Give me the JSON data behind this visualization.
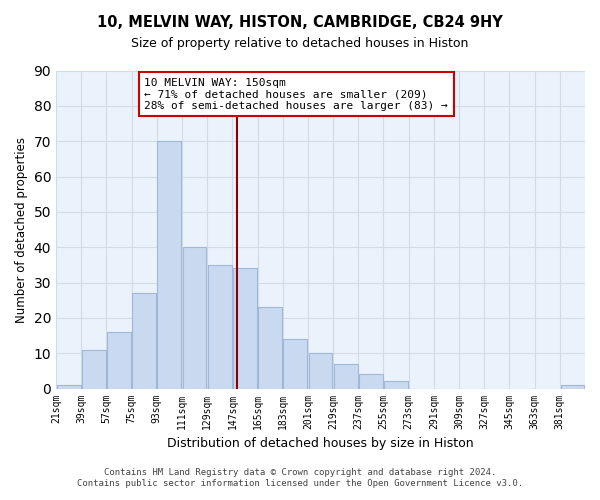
{
  "title": "10, MELVIN WAY, HISTON, CAMBRIDGE, CB24 9HY",
  "subtitle": "Size of property relative to detached houses in Histon",
  "xlabel": "Distribution of detached houses by size in Histon",
  "ylabel": "Number of detached properties",
  "bin_labels": [
    "21sqm",
    "39sqm",
    "57sqm",
    "75sqm",
    "93sqm",
    "111sqm",
    "129sqm",
    "147sqm",
    "165sqm",
    "183sqm",
    "201sqm",
    "219sqm",
    "237sqm",
    "255sqm",
    "273sqm",
    "291sqm",
    "309sqm",
    "327sqm",
    "345sqm",
    "363sqm",
    "381sqm"
  ],
  "bin_edges": [
    21,
    39,
    57,
    75,
    93,
    111,
    129,
    147,
    165,
    183,
    201,
    219,
    237,
    255,
    273,
    291,
    309,
    327,
    345,
    363,
    381,
    399
  ],
  "counts": [
    1,
    11,
    16,
    27,
    70,
    40,
    35,
    34,
    23,
    14,
    10,
    7,
    4,
    2,
    0,
    0,
    0,
    0,
    0,
    0,
    1
  ],
  "bar_color": "#c9d9f0",
  "bar_edgecolor": "#a0b8d8",
  "reference_line_x": 150,
  "reference_line_color": "#8b0000",
  "ylim": [
    0,
    90
  ],
  "yticks": [
    0,
    10,
    20,
    30,
    40,
    50,
    60,
    70,
    80,
    90
  ],
  "annotation_title": "10 MELVIN WAY: 150sqm",
  "annotation_line1": "← 71% of detached houses are smaller (209)",
  "annotation_line2": "28% of semi-detached houses are larger (83) →",
  "annotation_box_color": "#ffffff",
  "annotation_box_edgecolor": "#cc0000",
  "footer1": "Contains HM Land Registry data © Crown copyright and database right 2024.",
  "footer2": "Contains public sector information licensed under the Open Government Licence v3.0.",
  "grid_color": "#d0dce8",
  "background_color": "#eaf2fb"
}
